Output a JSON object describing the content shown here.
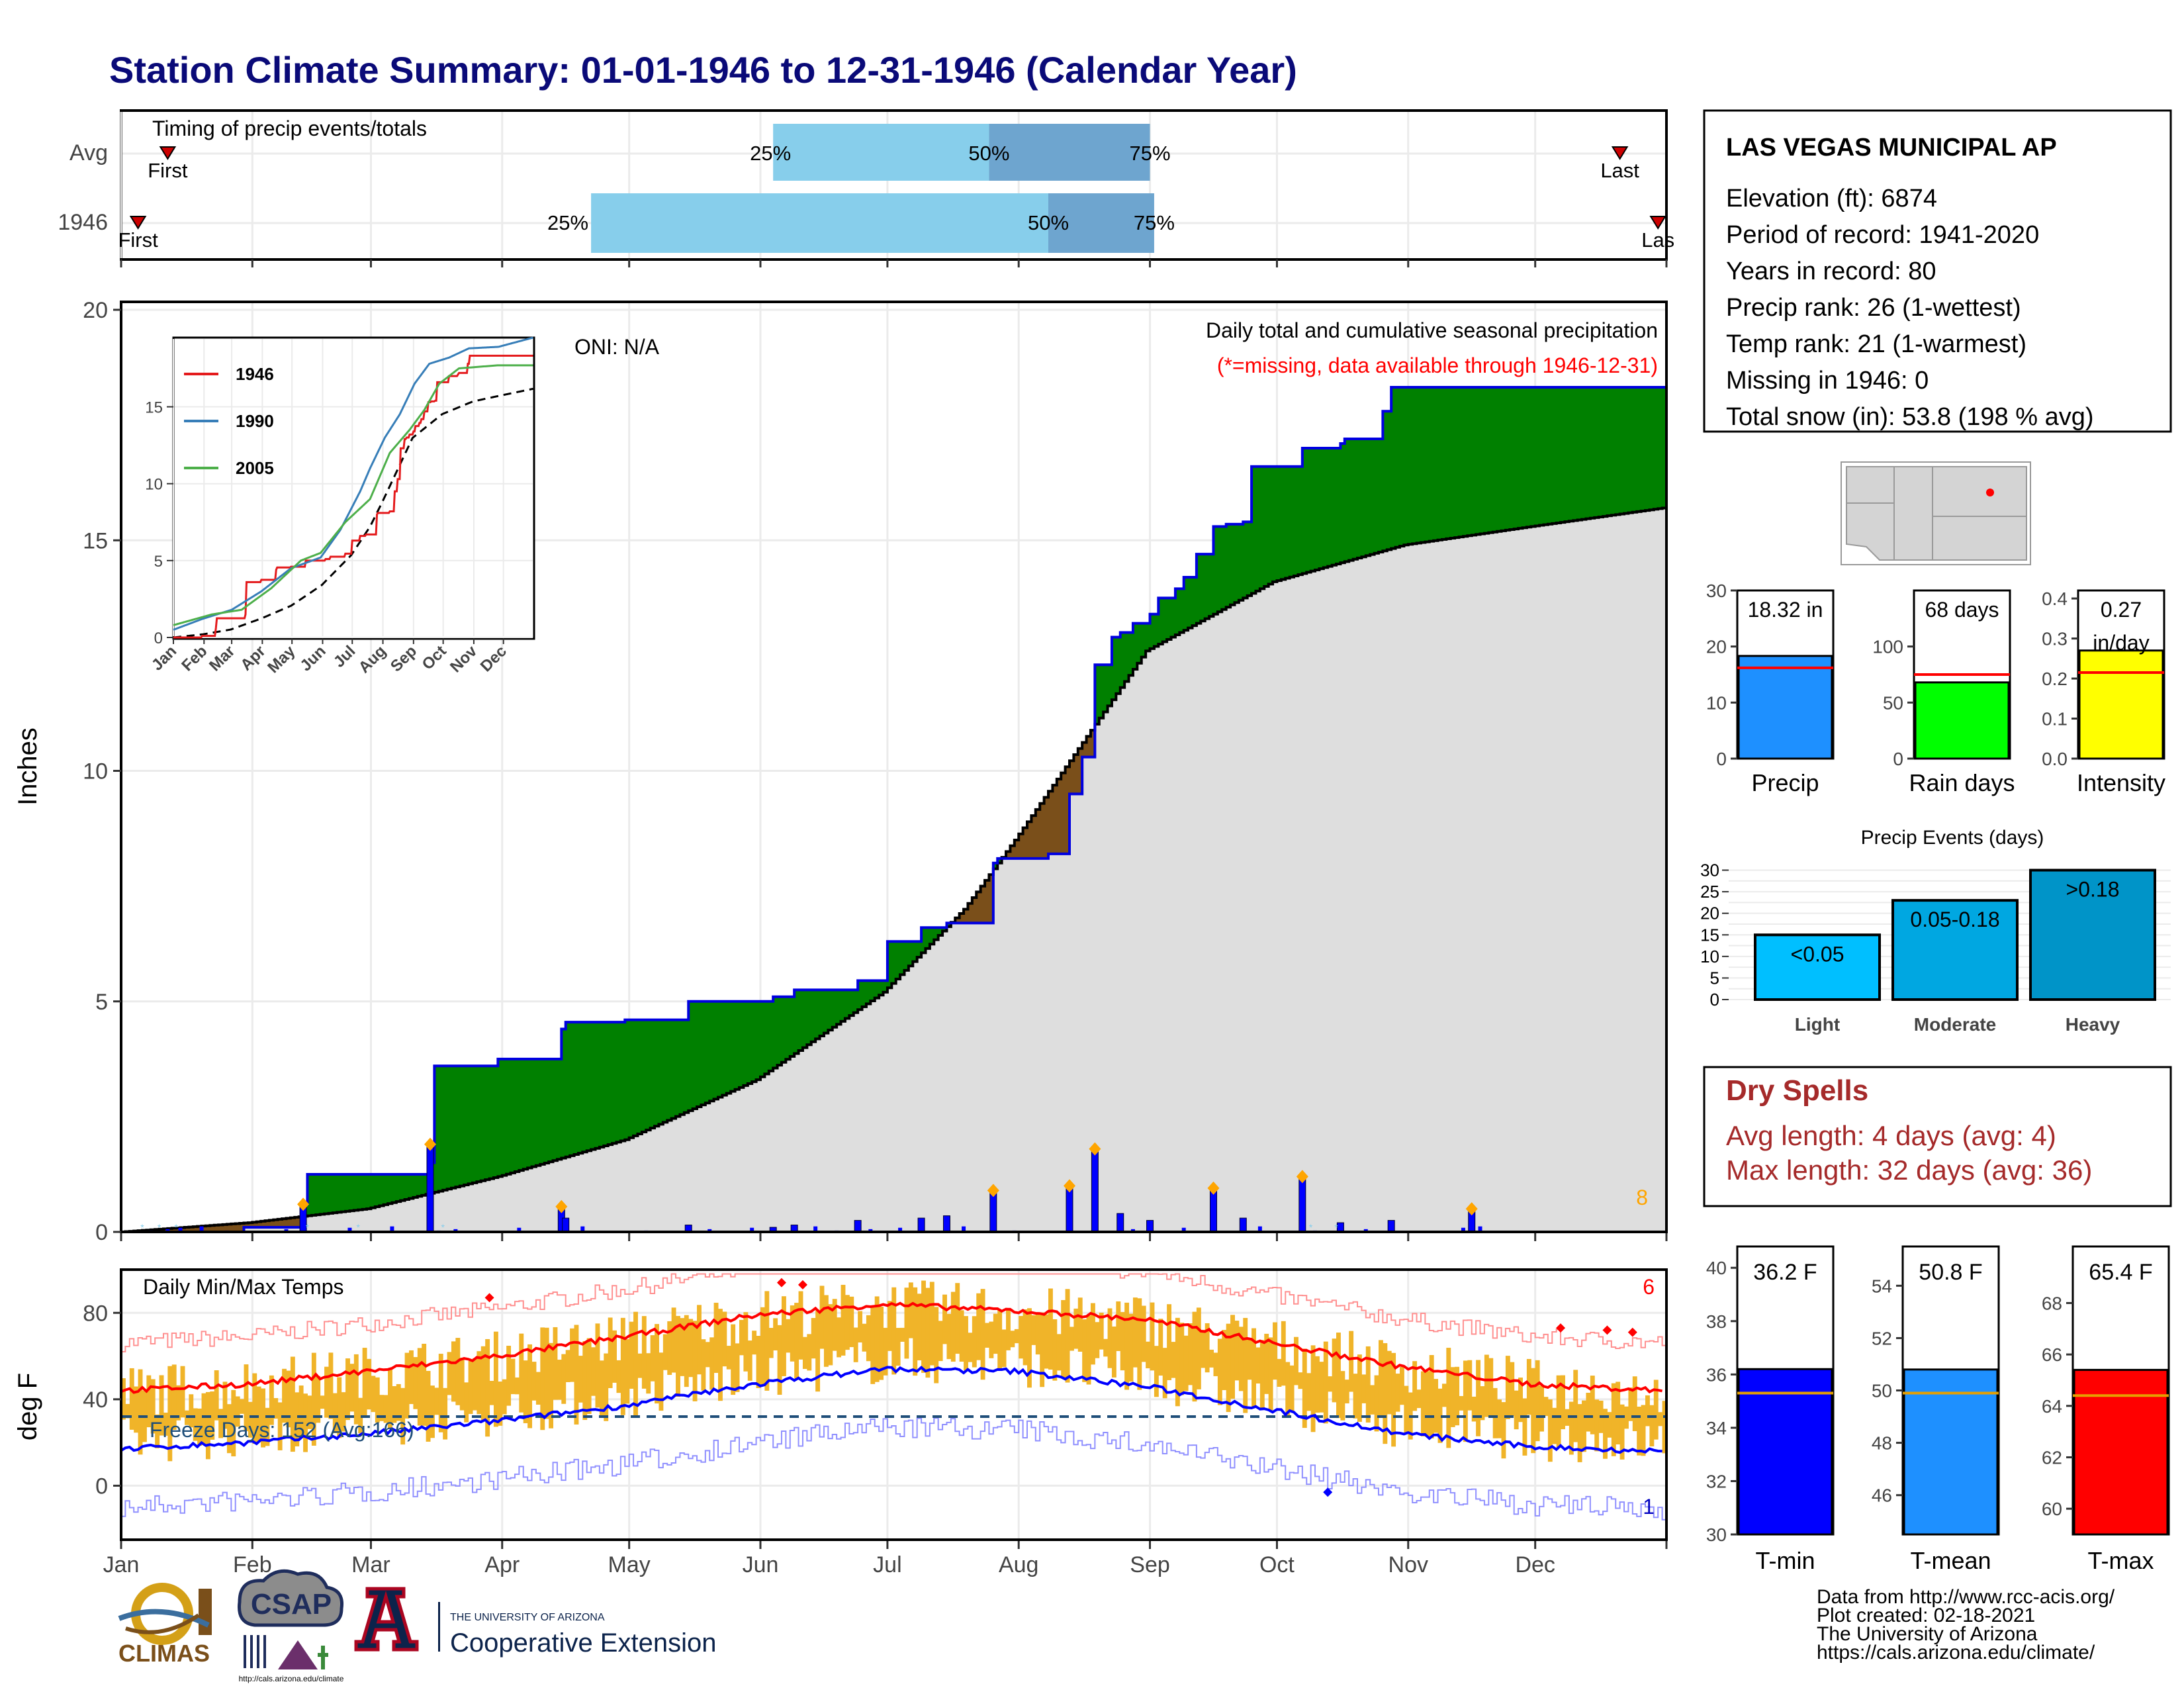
{
  "title": "Station Climate Summary: 01-01-1946 to 12-31-1946 (Calendar Year)",
  "colors": {
    "title": "#0a0a78",
    "precip_green": "#008000",
    "deficit_brown": "#7a4f1a",
    "avg_gray": "#dedede",
    "bar_blue": "#0000ff",
    "quartile_light": "#87ceeb",
    "quartile_dark": "#6ea5cf",
    "tmax_red": "#ff0000",
    "tmin_blue": "#0000ff",
    "tband": "#f0b429",
    "dry_spell": "#a52a2a",
    "freeze_line": "#1f4e79"
  },
  "timing": {
    "label": "Timing of precip events/totals",
    "rows": [
      {
        "name": "Avg",
        "first_label": "First",
        "last_label": "Last",
        "first_doy": 12,
        "last_doy": 355,
        "q25_doy": 155,
        "q50_doy": 206,
        "q75_doy": 244,
        "q25_label": "25%",
        "q50_label": "50%",
        "q75_label": "75%"
      },
      {
        "name": "1946",
        "first_label": "First",
        "last_label": "Las",
        "first_doy": 5,
        "last_doy": 364,
        "q25_doy": 112,
        "q50_doy": 220,
        "q75_doy": 245,
        "q25_label": "25%",
        "q50_label": "50%",
        "q75_label": "75%"
      }
    ]
  },
  "precip_panel": {
    "ylabel": "Inches",
    "oni": "ONI: N/A",
    "note1": "Daily total and cumulative seasonal precipitation",
    "note2": "(*=missing, data available through 1946-12-31)",
    "count_label": "8",
    "ylim": [
      0,
      20
    ],
    "yticks": [
      0,
      5,
      10,
      15,
      20
    ]
  },
  "inset": {
    "yticks": [
      0,
      5,
      10,
      15
    ],
    "legend": [
      {
        "name": "1946",
        "color": "#e41a1c"
      },
      {
        "name": "1990",
        "color": "#377eb8"
      },
      {
        "name": "2005",
        "color": "#4daf4a"
      }
    ]
  },
  "temp_panel": {
    "ylabel": "deg F",
    "label": "Daily Min/Max Temps",
    "freeze_label": "Freeze Days: 152 (Avg:166)",
    "count_max": "6",
    "count_min": "1",
    "ylim": [
      -25,
      100
    ],
    "yticks": [
      0,
      40,
      80
    ]
  },
  "months": [
    "Jan",
    "Feb",
    "Mar",
    "Apr",
    "May",
    "Jun",
    "Jul",
    "Aug",
    "Sep",
    "Oct",
    "Nov",
    "Dec"
  ],
  "station": {
    "name": "LAS VEGAS MUNICIPAL AP",
    "lines": [
      "Elevation (ft): 6874",
      "Period of record: 1941-2020",
      "Years in record: 80",
      "Precip rank: 26 (1-wettest)",
      "Temp rank: 21 (1-warmest)",
      "Missing in 1946: 0",
      "Total snow (in): 53.8 (198 % avg)"
    ]
  },
  "summary_bars": [
    {
      "label": "Precip",
      "value_label": "18.32 in",
      "value": 18.32,
      "avg": 16.2,
      "ymax": 30,
      "ticks": [
        0,
        10,
        20,
        30
      ],
      "color": "#1e90ff"
    },
    {
      "label": "Rain days",
      "value_label": "68 days",
      "value": 68,
      "avg": 75,
      "ymax": 150,
      "ticks": [
        0,
        50,
        100
      ],
      "color": "#00ff00"
    },
    {
      "label": "Intensity",
      "value_label": "0.27",
      "value_label2": "in/day",
      "value": 0.27,
      "avg": 0.215,
      "ymax": 0.42,
      "ticks": [
        0.0,
        0.1,
        0.2,
        0.3,
        0.4
      ],
      "color": "#ffff00"
    }
  ],
  "events": {
    "title": "Precip Events (days)",
    "yticks": [
      0,
      5,
      10,
      15,
      20,
      25,
      30
    ],
    "bars": [
      {
        "label": "Light",
        "bar_label": "<0.05",
        "value": 15,
        "color": "#00bfff"
      },
      {
        "label": "Moderate",
        "bar_label": "0.05-0.18",
        "value": 23,
        "color": "#00a7e1"
      },
      {
        "label": "Heavy",
        "bar_label": ">0.18",
        "value": 30,
        "color": "#0094c8"
      }
    ]
  },
  "dry_spells": {
    "title": "Dry Spells",
    "line1": "Avg length: 4 days (avg: 4)",
    "line2": "Max length: 32 days (avg: 36)"
  },
  "temp_bars": [
    {
      "label": "T-min",
      "value_label": "36.2 F",
      "value": 36.2,
      "avg": 35.3,
      "ymin": 30,
      "ymax": 40.8,
      "ticks": [
        30,
        32,
        34,
        36,
        38,
        40
      ],
      "color": "#0000ff"
    },
    {
      "label": "T-mean",
      "value_label": "50.8 F",
      "value": 50.8,
      "avg": 49.9,
      "ymin": 44.5,
      "ymax": 55.5,
      "ticks": [
        46,
        48,
        50,
        52,
        54
      ],
      "color": "#1e90ff"
    },
    {
      "label": "T-max",
      "value_label": "65.4 F",
      "value": 65.4,
      "avg": 64.4,
      "ymin": 59,
      "ymax": 70.2,
      "ticks": [
        60,
        62,
        64,
        66,
        68
      ],
      "color": "#ff0000"
    }
  ],
  "footer": {
    "lines": [
      "Data from http://www.rcc-acis.org/",
      "Plot created: 02-18-2021",
      "The University of Arizona",
      "https://cals.arizona.edu/climate/"
    ],
    "logos": {
      "climas": "CLIMAS",
      "csap": "CSAP",
      "csap_url": "http://cals.arizona.edu/climate",
      "ua_small": "THE UNIVERSITY OF ARIZONA",
      "ua_big": "Cooperative Extension"
    }
  },
  "chart_data": [
    {
      "type": "area",
      "title": "Daily total and cumulative seasonal precipitation",
      "ylabel": "Inches",
      "ylim": [
        0,
        20
      ],
      "cumulative_1946": {
        "doy": [
          1,
          30,
          44,
          45,
          74,
          75,
          90,
          105,
          106,
          120,
          135,
          155,
          160,
          175,
          182,
          190,
          196,
          207,
          208,
          220,
          225,
          228,
          231,
          235,
          237,
          240,
          244,
          246,
          250,
          252,
          255,
          259,
          262,
          266,
          268,
          280,
          289,
          290,
          299,
          301,
          320,
          365
        ],
        "value": [
          0,
          0.1,
          0.6,
          1.25,
          1.5,
          3.6,
          3.75,
          4.4,
          4.55,
          4.6,
          5.0,
          5.1,
          5.25,
          5.45,
          6.3,
          6.6,
          6.7,
          8.0,
          8.1,
          8.2,
          9.5,
          10.3,
          12.3,
          12.9,
          13.0,
          13.2,
          13.4,
          13.75,
          13.95,
          14.2,
          14.7,
          15.3,
          15.35,
          15.4,
          16.6,
          17.0,
          17.1,
          17.2,
          17.8,
          18.32,
          18.32,
          18.32
        ]
      },
      "average_cumulative": {
        "doy": [
          1,
          31,
          59,
          90,
          120,
          151,
          181,
          200,
          212,
          243,
          273,
          304,
          334,
          365
        ],
        "value": [
          0,
          0.2,
          0.5,
          1.2,
          2.0,
          3.3,
          5.2,
          7.0,
          8.5,
          12.6,
          14.1,
          14.9,
          15.3,
          15.7
        ]
      },
      "daily_1946": {
        "doy": [
          44,
          74,
          105,
          106,
          135,
          155,
          160,
          175,
          190,
          196,
          207,
          225,
          231,
          237,
          244,
          259,
          266,
          280,
          289,
          301,
          320
        ],
        "value": [
          0.6,
          1.9,
          0.55,
          0.3,
          0.15,
          0.1,
          0.15,
          0.25,
          0.3,
          0.35,
          0.9,
          1.0,
          1.8,
          0.4,
          0.25,
          0.95,
          0.3,
          1.2,
          0.2,
          0.25,
          0.5
        ]
      }
    },
    {
      "type": "line",
      "title": "Daily Min/Max Temps",
      "ylabel": "deg F",
      "ylim": [
        -25,
        100
      ],
      "avg_tmax": {
        "doy": [
          1,
          31,
          59,
          90,
          120,
          151,
          181,
          212,
          243,
          273,
          304,
          334,
          365
        ],
        "value": [
          44,
          47,
          53,
          60,
          69,
          79,
          84,
          81,
          77,
          66,
          55,
          47,
          44
        ]
      },
      "avg_tmin": {
        "doy": [
          1,
          31,
          59,
          90,
          120,
          151,
          181,
          212,
          243,
          273,
          304,
          334,
          365
        ],
        "value": [
          17,
          20,
          24,
          30,
          37,
          47,
          54,
          53,
          46,
          35,
          24,
          18,
          16
        ]
      },
      "freeze_threshold": 32
    },
    {
      "type": "bar",
      "title": "Precip Events (days)",
      "categories": [
        "Light",
        "Moderate",
        "Heavy"
      ],
      "values": [
        15,
        23,
        30
      ]
    }
  ]
}
